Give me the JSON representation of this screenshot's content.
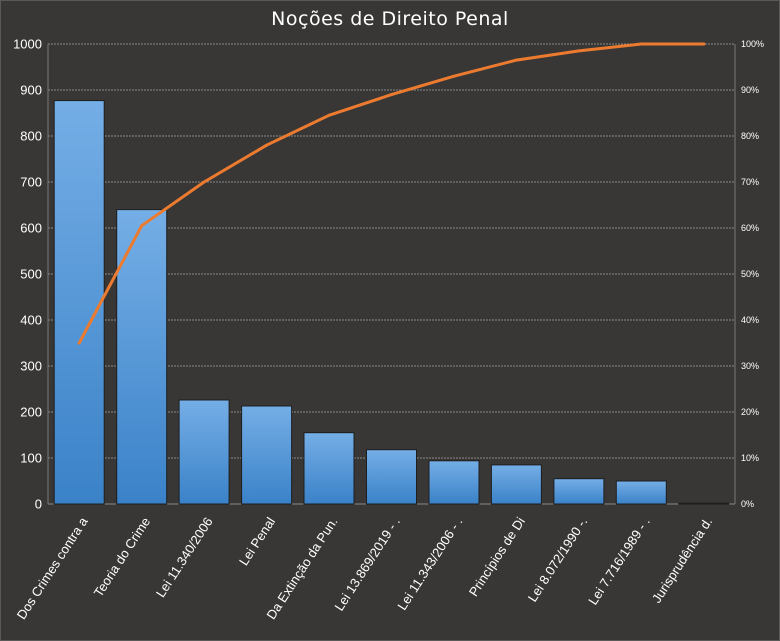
{
  "chart_data": {
    "type": "bar",
    "title": "Noções de Direito Penal",
    "categories": [
      "Dos Crimes contra a",
      "Teoria do Crime",
      "Lei 11.340/2006",
      "Lei Penal",
      "Da Extinção da Pun.",
      "Lei 13.869/2019 - .",
      "Lei 11.343/2006 - .",
      "Princípios de Di",
      "Lei 8.072/1990 -.",
      "Lei 7.716/1989 - .",
      "Jurisprudência d."
    ],
    "series": [
      {
        "type": "bar",
        "values": [
          877,
          640,
          226,
          213,
          155,
          118,
          94,
          85,
          55,
          50,
          2
        ]
      },
      {
        "type": "line",
        "axis": "right",
        "values": [
          35,
          60.5,
          70,
          78,
          84.5,
          89,
          93,
          96.5,
          98.5,
          100,
          100
        ]
      }
    ],
    "ylim": [
      0,
      1000
    ],
    "y_ticks": [
      "0",
      "100",
      "200",
      "300",
      "400",
      "500",
      "600",
      "700",
      "800",
      "900",
      "1000"
    ],
    "y2lim": [
      0,
      100
    ],
    "y2_ticks": [
      "0%",
      "10%",
      "20%",
      "30%",
      "40%",
      "50%",
      "60%",
      "70%",
      "80%",
      "90%",
      "100%"
    ],
    "grid": true,
    "colors": {
      "bar_top": "#75aee6",
      "bar_bottom": "#3a82c8",
      "line": "#ec7b2f",
      "grid": "#8a8988",
      "background": "#383736"
    }
  }
}
